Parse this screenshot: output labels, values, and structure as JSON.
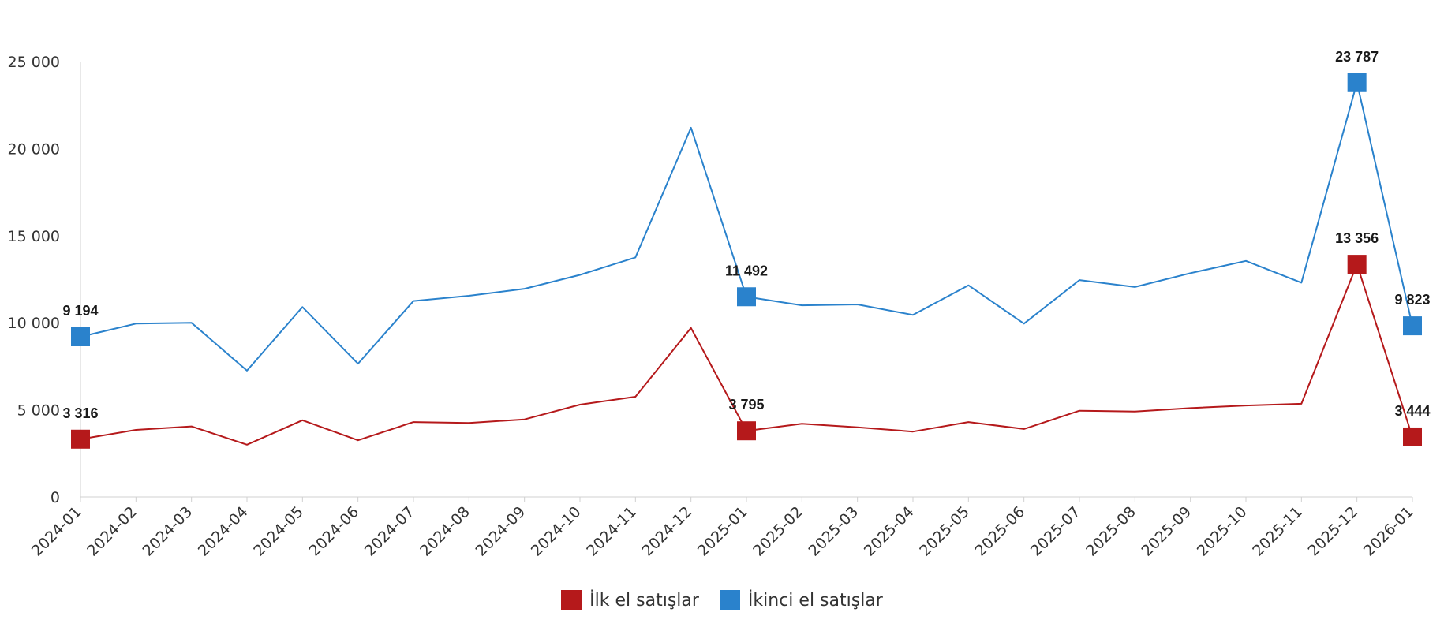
{
  "chart_data": {
    "type": "line",
    "title": "",
    "xlabel": "",
    "ylabel": "",
    "ylim": [
      0,
      25000
    ],
    "yticks": [
      0,
      5000,
      10000,
      15000,
      20000,
      25000
    ],
    "ytick_labels": [
      "0",
      "5 000",
      "10 000",
      "15 000",
      "20 000",
      "25 000"
    ],
    "grid": false,
    "legend_position": "bottom",
    "categories": [
      "2024-01",
      "2024-02",
      "2024-03",
      "2024-04",
      "2024-05",
      "2024-06",
      "2024-07",
      "2024-08",
      "2024-09",
      "2024-10",
      "2024-11",
      "2024-12",
      "2025-01",
      "2025-02",
      "2025-03",
      "2025-04",
      "2025-05",
      "2025-06",
      "2025-07",
      "2025-08",
      "2025-09",
      "2025-10",
      "2025-11",
      "2025-12",
      "2026-01"
    ],
    "series": [
      {
        "name": "İlk el satışlar",
        "color": "#b5191b",
        "values": [
          3316,
          3850,
          4050,
          3000,
          4400,
          3250,
          4300,
          4250,
          4450,
          5300,
          5750,
          9700,
          3795,
          4200,
          4000,
          3750,
          4300,
          3900,
          4950,
          4900,
          5100,
          5250,
          5350,
          13356,
          3444
        ],
        "labeled_points": [
          0,
          12,
          23,
          24
        ],
        "data_labels": [
          "3 316",
          "3 795",
          "13 356",
          "3 444"
        ]
      },
      {
        "name": "İkinci el satışlar",
        "color": "#2a82cc",
        "values": [
          9194,
          9950,
          10000,
          7250,
          10900,
          7650,
          11250,
          11550,
          11950,
          12750,
          13750,
          21200,
          11492,
          11000,
          11050,
          10450,
          12150,
          9950,
          12450,
          12050,
          12850,
          13550,
          12300,
          23787,
          9823
        ],
        "labeled_points": [
          0,
          12,
          23,
          24
        ],
        "data_labels": [
          "9 194",
          "11 492",
          "23 787",
          "9 823"
        ]
      }
    ]
  }
}
